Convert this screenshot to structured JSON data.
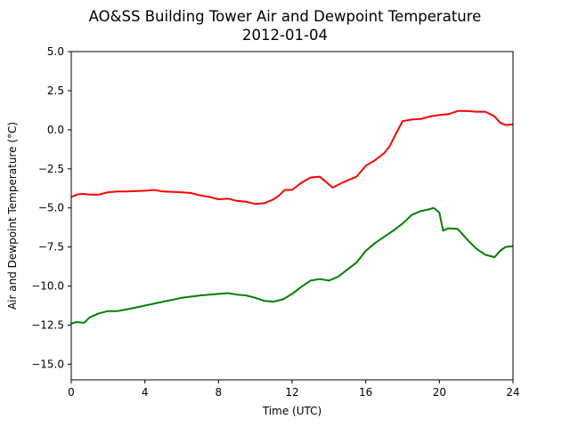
{
  "chart_data": {
    "type": "line",
    "title": "AO&SS Building Tower Air and Dewpoint Temperature",
    "subtitle": "2012-01-04",
    "xlabel": "Time (UTC)",
    "ylabel": "Air and Dewpoint Temperature (°C)",
    "xlim": [
      0,
      24
    ],
    "ylim": [
      -16,
      5
    ],
    "x_ticks": [
      0,
      4,
      8,
      12,
      16,
      20,
      24
    ],
    "x_tick_labels": [
      "0",
      "4",
      "8",
      "12",
      "16",
      "20",
      "24"
    ],
    "y_ticks": [
      5.0,
      2.5,
      0.0,
      -2.5,
      -5.0,
      -7.5,
      -10.0,
      -12.5,
      -15.0
    ],
    "y_tick_labels": [
      "5.0",
      "2.5",
      "0.0",
      "−2.5",
      "−5.0",
      "−7.5",
      "−10.0",
      "−12.5",
      "−15.0"
    ],
    "grid": false,
    "legend": "none",
    "series": [
      {
        "color": "#ff0000",
        "x": [
          0,
          0.3,
          0.6,
          1,
          1.5,
          2,
          2.5,
          3,
          4,
          4.5,
          5,
          6,
          6.5,
          7,
          7.5,
          8,
          8.5,
          9,
          9.5,
          10,
          10.5,
          11,
          11.3,
          11.6,
          12,
          12.5,
          13,
          13.5,
          13.8,
          14.2,
          14.8,
          15.5,
          16,
          16.5,
          17,
          17.3,
          17.6,
          18,
          18.5,
          19,
          19.5,
          20,
          20.5,
          21,
          21.5,
          22,
          22.5,
          23,
          23.3,
          23.6,
          24
        ],
        "y": [
          -4.3,
          -4.15,
          -4.1,
          -4.15,
          -4.15,
          -4.0,
          -3.95,
          -3.95,
          -3.9,
          -3.85,
          -3.95,
          -4.0,
          -4.05,
          -4.2,
          -4.3,
          -4.45,
          -4.4,
          -4.55,
          -4.6,
          -4.75,
          -4.7,
          -4.45,
          -4.2,
          -3.85,
          -3.85,
          -3.4,
          -3.05,
          -3.0,
          -3.3,
          -3.7,
          -3.35,
          -3.0,
          -2.3,
          -1.95,
          -1.5,
          -1.05,
          -0.35,
          0.55,
          0.65,
          0.7,
          0.85,
          0.95,
          1.0,
          1.2,
          1.2,
          1.15,
          1.15,
          0.85,
          0.45,
          0.3,
          0.35
        ]
      },
      {
        "color": "#008000",
        "x": [
          0,
          0.3,
          0.7,
          1,
          1.5,
          2,
          2.5,
          3,
          4,
          5,
          6,
          7,
          7.5,
          8,
          8.5,
          9,
          9.5,
          10,
          10.5,
          11,
          11.5,
          12,
          12.5,
          13,
          13.5,
          14,
          14.5,
          15,
          15.5,
          16,
          16.5,
          17,
          17.5,
          18,
          18.5,
          19,
          19.4,
          19.7,
          20,
          20.2,
          20.5,
          21,
          21.5,
          22,
          22.5,
          23,
          23.3,
          23.6,
          24
        ],
        "y": [
          -12.4,
          -12.3,
          -12.35,
          -12.0,
          -11.75,
          -11.6,
          -11.6,
          -11.5,
          -11.25,
          -11.0,
          -10.75,
          -10.6,
          -10.55,
          -10.5,
          -10.45,
          -10.55,
          -10.6,
          -10.75,
          -10.95,
          -11.0,
          -10.85,
          -10.5,
          -10.05,
          -9.65,
          -9.55,
          -9.65,
          -9.4,
          -8.95,
          -8.5,
          -7.75,
          -7.25,
          -6.85,
          -6.45,
          -6.0,
          -5.45,
          -5.2,
          -5.1,
          -5.0,
          -5.3,
          -6.45,
          -6.3,
          -6.35,
          -7.0,
          -7.6,
          -8.0,
          -8.15,
          -7.75,
          -7.5,
          -7.45
        ]
      }
    ]
  }
}
